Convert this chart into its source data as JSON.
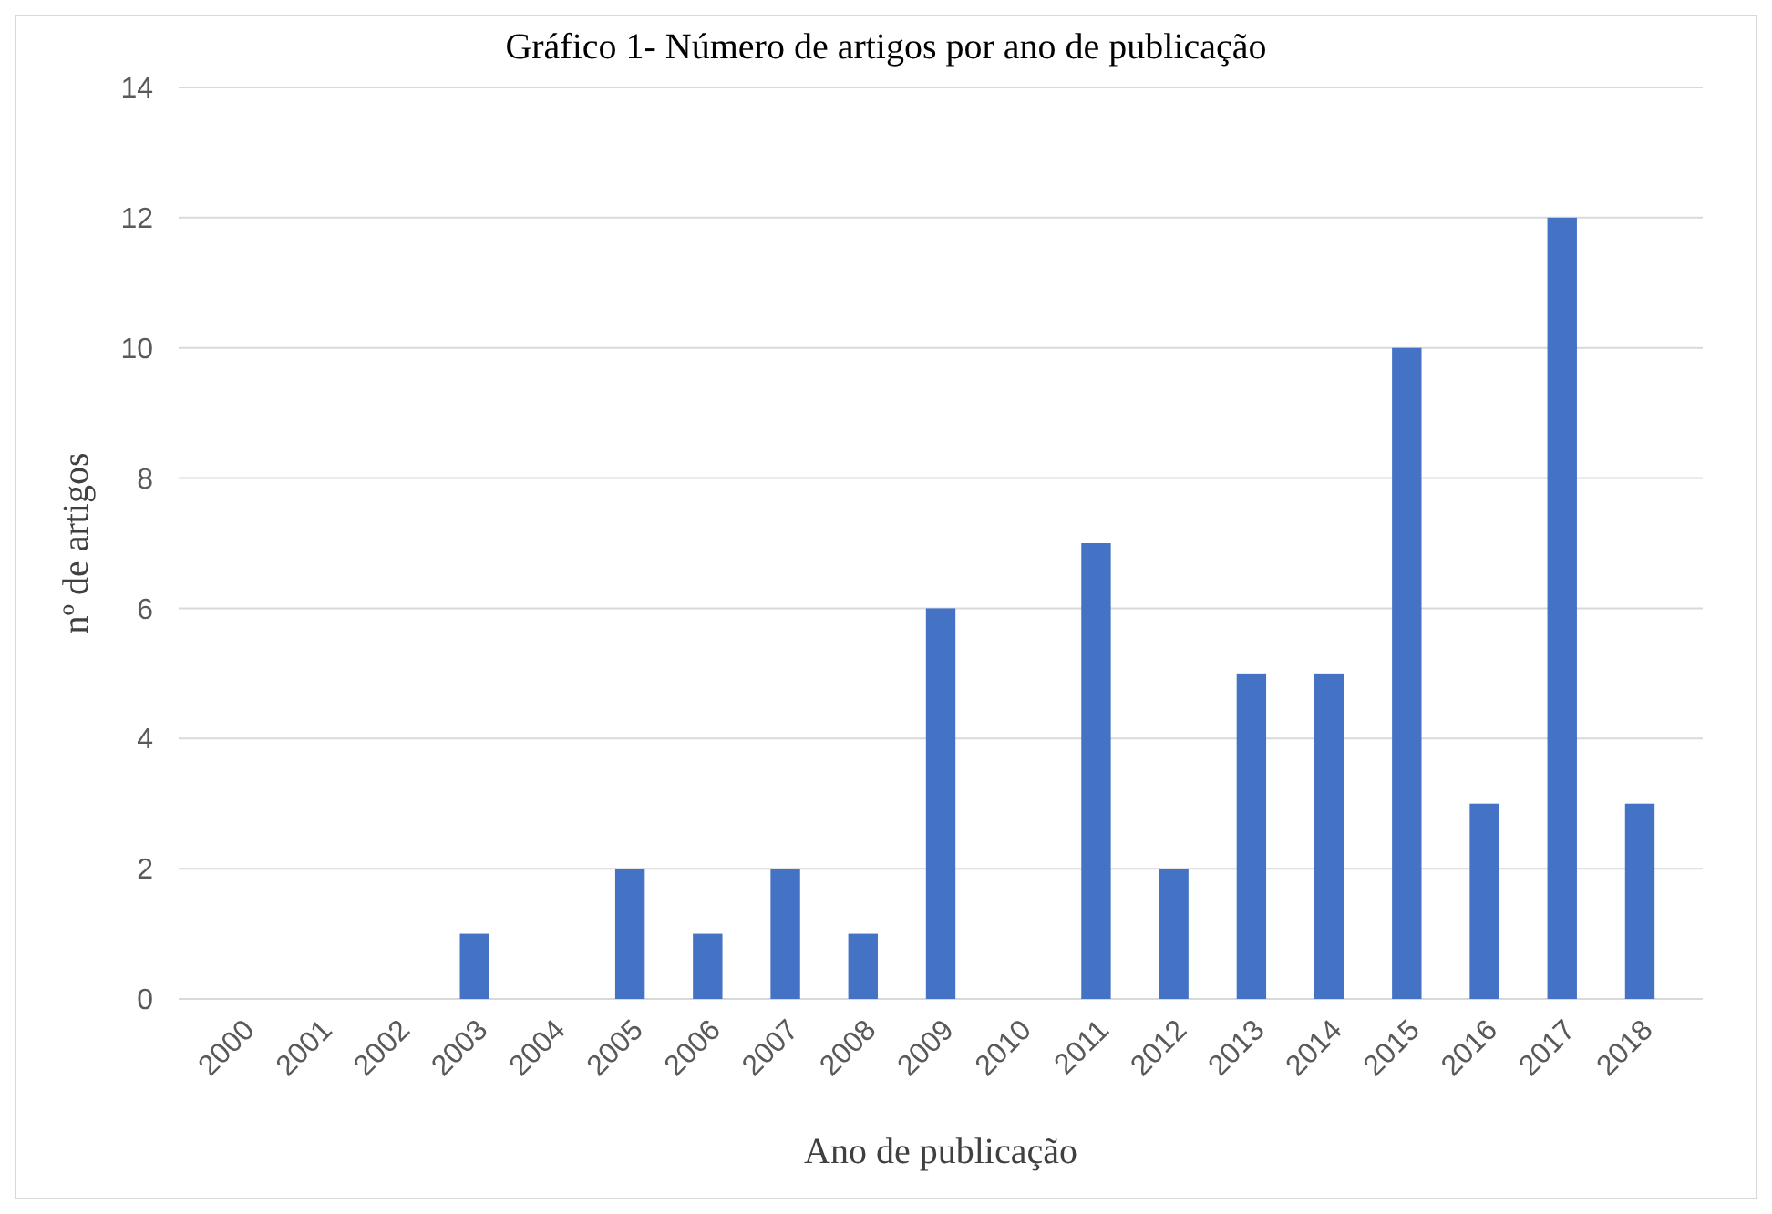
{
  "chart_data": {
    "type": "bar",
    "title": "Gráfico 1- Número de artigos por ano de publicação",
    "xlabel": "Ano de publicação",
    "ylabel": "nº de artigos",
    "categories": [
      "2000",
      "2001",
      "2002",
      "2003",
      "2004",
      "2005",
      "2006",
      "2007",
      "2008",
      "2009",
      "2010",
      "2011",
      "2012",
      "2013",
      "2014",
      "2015",
      "2016",
      "2017",
      "2018"
    ],
    "values": [
      0,
      0,
      0,
      1,
      0,
      2,
      1,
      2,
      1,
      6,
      0,
      7,
      2,
      5,
      5,
      10,
      3,
      12,
      3
    ],
    "color": "#4472c4",
    "ylim": [
      0,
      14
    ],
    "yticks": [
      0,
      2,
      4,
      6,
      8,
      10,
      12,
      14
    ],
    "grid": "y"
  }
}
